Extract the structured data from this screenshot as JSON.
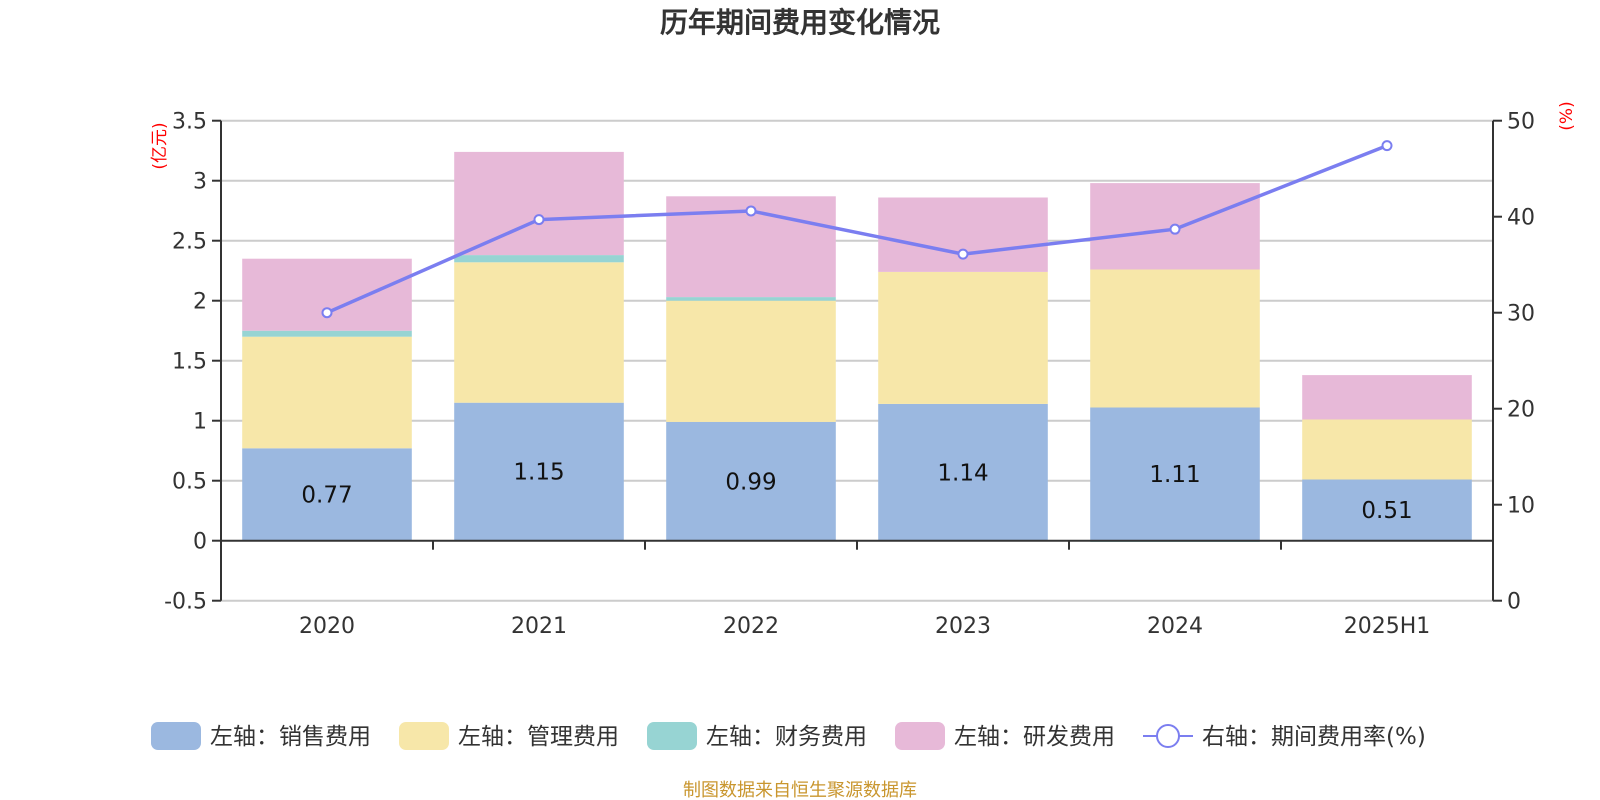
{
  "chart_data": {
    "type": "bar",
    "title": "历年期间费用变化情况",
    "categories": [
      "2020",
      "2021",
      "2022",
      "2023",
      "2024",
      "2025H1"
    ],
    "left_axis": {
      "unit_label": "(亿元)",
      "ylim": [
        -0.5,
        3.5
      ],
      "ticks": [
        "-0.5",
        "0",
        "0.5",
        "1",
        "1.5",
        "2",
        "2.5",
        "3",
        "3.5"
      ]
    },
    "right_axis": {
      "unit_label": "(%)",
      "ylim": [
        0,
        50
      ],
      "ticks": [
        "0",
        "10",
        "20",
        "30",
        "40",
        "50"
      ]
    },
    "grid": true,
    "stacked": true,
    "series": [
      {
        "name": "左轴：销售费用",
        "axis": "left",
        "type": "bar",
        "color": "#9bb8e0",
        "values": [
          0.77,
          1.15,
          0.99,
          1.14,
          1.11,
          0.51
        ],
        "labels": [
          "0.77",
          "1.15",
          "0.99",
          "1.14",
          "1.11",
          "0.51"
        ]
      },
      {
        "name": "左轴：管理费用",
        "axis": "left",
        "type": "bar",
        "color": "#f7e7a9",
        "values": [
          0.93,
          1.17,
          1.01,
          1.1,
          1.15,
          0.5
        ]
      },
      {
        "name": "左轴：财务费用",
        "axis": "left",
        "type": "bar",
        "color": "#97d4d3",
        "values": [
          0.05,
          0.06,
          0.03,
          0.0,
          -0.01,
          0.0
        ]
      },
      {
        "name": "左轴：研发费用",
        "axis": "left",
        "type": "bar",
        "color": "#e7b9d8",
        "values": [
          0.6,
          0.86,
          0.84,
          0.62,
          0.72,
          0.37
        ]
      },
      {
        "name": "右轴：期间费用率(%)",
        "axis": "right",
        "type": "line",
        "color": "#7b7ef0",
        "values": [
          30.0,
          39.7,
          40.6,
          36.1,
          38.7,
          47.4
        ]
      }
    ],
    "legend_position": "bottom"
  },
  "footer": "制图数据来自恒生聚源数据库"
}
